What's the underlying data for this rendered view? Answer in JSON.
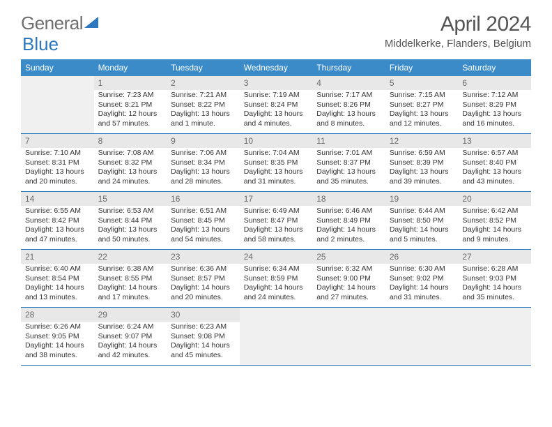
{
  "logo": {
    "text1": "General",
    "text2": "Blue"
  },
  "title": "April 2024",
  "location": "Middelkerke, Flanders, Belgium",
  "colors": {
    "header_bg": "#3b8bc9",
    "border": "#2b77c0",
    "logo_gray": "#6e6e6e",
    "logo_blue": "#2b77c0",
    "empty_bg": "#f0f0f0"
  },
  "days_of_week": [
    "Sunday",
    "Monday",
    "Tuesday",
    "Wednesday",
    "Thursday",
    "Friday",
    "Saturday"
  ],
  "weeks": [
    [
      {
        "num": "",
        "empty": true
      },
      {
        "num": "1",
        "sunrise": "Sunrise: 7:23 AM",
        "sunset": "Sunset: 8:21 PM",
        "daylight": "Daylight: 12 hours and 57 minutes."
      },
      {
        "num": "2",
        "sunrise": "Sunrise: 7:21 AM",
        "sunset": "Sunset: 8:22 PM",
        "daylight": "Daylight: 13 hours and 1 minute."
      },
      {
        "num": "3",
        "sunrise": "Sunrise: 7:19 AM",
        "sunset": "Sunset: 8:24 PM",
        "daylight": "Daylight: 13 hours and 4 minutes."
      },
      {
        "num": "4",
        "sunrise": "Sunrise: 7:17 AM",
        "sunset": "Sunset: 8:26 PM",
        "daylight": "Daylight: 13 hours and 8 minutes."
      },
      {
        "num": "5",
        "sunrise": "Sunrise: 7:15 AM",
        "sunset": "Sunset: 8:27 PM",
        "daylight": "Daylight: 13 hours and 12 minutes."
      },
      {
        "num": "6",
        "sunrise": "Sunrise: 7:12 AM",
        "sunset": "Sunset: 8:29 PM",
        "daylight": "Daylight: 13 hours and 16 minutes."
      }
    ],
    [
      {
        "num": "7",
        "sunrise": "Sunrise: 7:10 AM",
        "sunset": "Sunset: 8:31 PM",
        "daylight": "Daylight: 13 hours and 20 minutes."
      },
      {
        "num": "8",
        "sunrise": "Sunrise: 7:08 AM",
        "sunset": "Sunset: 8:32 PM",
        "daylight": "Daylight: 13 hours and 24 minutes."
      },
      {
        "num": "9",
        "sunrise": "Sunrise: 7:06 AM",
        "sunset": "Sunset: 8:34 PM",
        "daylight": "Daylight: 13 hours and 28 minutes."
      },
      {
        "num": "10",
        "sunrise": "Sunrise: 7:04 AM",
        "sunset": "Sunset: 8:35 PM",
        "daylight": "Daylight: 13 hours and 31 minutes."
      },
      {
        "num": "11",
        "sunrise": "Sunrise: 7:01 AM",
        "sunset": "Sunset: 8:37 PM",
        "daylight": "Daylight: 13 hours and 35 minutes."
      },
      {
        "num": "12",
        "sunrise": "Sunrise: 6:59 AM",
        "sunset": "Sunset: 8:39 PM",
        "daylight": "Daylight: 13 hours and 39 minutes."
      },
      {
        "num": "13",
        "sunrise": "Sunrise: 6:57 AM",
        "sunset": "Sunset: 8:40 PM",
        "daylight": "Daylight: 13 hours and 43 minutes."
      }
    ],
    [
      {
        "num": "14",
        "sunrise": "Sunrise: 6:55 AM",
        "sunset": "Sunset: 8:42 PM",
        "daylight": "Daylight: 13 hours and 47 minutes."
      },
      {
        "num": "15",
        "sunrise": "Sunrise: 6:53 AM",
        "sunset": "Sunset: 8:44 PM",
        "daylight": "Daylight: 13 hours and 50 minutes."
      },
      {
        "num": "16",
        "sunrise": "Sunrise: 6:51 AM",
        "sunset": "Sunset: 8:45 PM",
        "daylight": "Daylight: 13 hours and 54 minutes."
      },
      {
        "num": "17",
        "sunrise": "Sunrise: 6:49 AM",
        "sunset": "Sunset: 8:47 PM",
        "daylight": "Daylight: 13 hours and 58 minutes."
      },
      {
        "num": "18",
        "sunrise": "Sunrise: 6:46 AM",
        "sunset": "Sunset: 8:49 PM",
        "daylight": "Daylight: 14 hours and 2 minutes."
      },
      {
        "num": "19",
        "sunrise": "Sunrise: 6:44 AM",
        "sunset": "Sunset: 8:50 PM",
        "daylight": "Daylight: 14 hours and 5 minutes."
      },
      {
        "num": "20",
        "sunrise": "Sunrise: 6:42 AM",
        "sunset": "Sunset: 8:52 PM",
        "daylight": "Daylight: 14 hours and 9 minutes."
      }
    ],
    [
      {
        "num": "21",
        "sunrise": "Sunrise: 6:40 AM",
        "sunset": "Sunset: 8:54 PM",
        "daylight": "Daylight: 14 hours and 13 minutes."
      },
      {
        "num": "22",
        "sunrise": "Sunrise: 6:38 AM",
        "sunset": "Sunset: 8:55 PM",
        "daylight": "Daylight: 14 hours and 17 minutes."
      },
      {
        "num": "23",
        "sunrise": "Sunrise: 6:36 AM",
        "sunset": "Sunset: 8:57 PM",
        "daylight": "Daylight: 14 hours and 20 minutes."
      },
      {
        "num": "24",
        "sunrise": "Sunrise: 6:34 AM",
        "sunset": "Sunset: 8:59 PM",
        "daylight": "Daylight: 14 hours and 24 minutes."
      },
      {
        "num": "25",
        "sunrise": "Sunrise: 6:32 AM",
        "sunset": "Sunset: 9:00 PM",
        "daylight": "Daylight: 14 hours and 27 minutes."
      },
      {
        "num": "26",
        "sunrise": "Sunrise: 6:30 AM",
        "sunset": "Sunset: 9:02 PM",
        "daylight": "Daylight: 14 hours and 31 minutes."
      },
      {
        "num": "27",
        "sunrise": "Sunrise: 6:28 AM",
        "sunset": "Sunset: 9:03 PM",
        "daylight": "Daylight: 14 hours and 35 minutes."
      }
    ],
    [
      {
        "num": "28",
        "sunrise": "Sunrise: 6:26 AM",
        "sunset": "Sunset: 9:05 PM",
        "daylight": "Daylight: 14 hours and 38 minutes."
      },
      {
        "num": "29",
        "sunrise": "Sunrise: 6:24 AM",
        "sunset": "Sunset: 9:07 PM",
        "daylight": "Daylight: 14 hours and 42 minutes."
      },
      {
        "num": "30",
        "sunrise": "Sunrise: 6:23 AM",
        "sunset": "Sunset: 9:08 PM",
        "daylight": "Daylight: 14 hours and 45 minutes."
      },
      {
        "num": "",
        "empty": true
      },
      {
        "num": "",
        "empty": true
      },
      {
        "num": "",
        "empty": true
      },
      {
        "num": "",
        "empty": true
      }
    ]
  ]
}
